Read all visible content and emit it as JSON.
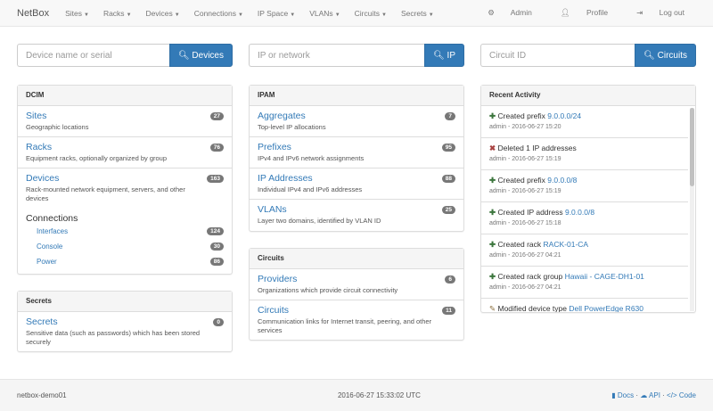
{
  "nav": {
    "brand": "NetBox",
    "menus": [
      "Sites",
      "Racks",
      "Devices",
      "Connections",
      "IP Space",
      "VLANs",
      "Circuits",
      "Secrets"
    ],
    "admin": "Admin",
    "profile": "Profile",
    "logout": "Log out"
  },
  "search": {
    "devices": {
      "placeholder": "Device name or serial",
      "button": "Devices"
    },
    "ip": {
      "placeholder": "IP or network",
      "button": "IP"
    },
    "circuits": {
      "placeholder": "Circuit ID",
      "button": "Circuits"
    }
  },
  "dcim": {
    "title": "DCIM",
    "items": [
      {
        "label": "Sites",
        "desc": "Geographic locations",
        "count": "27"
      },
      {
        "label": "Racks",
        "desc": "Equipment racks, optionally organized by group",
        "count": "76"
      },
      {
        "label": "Devices",
        "desc": "Rack-mounted network equipment, servers, and other devices",
        "count": "163"
      }
    ],
    "connections": {
      "label": "Connections",
      "items": [
        {
          "label": "Interfaces",
          "count": "124"
        },
        {
          "label": "Console",
          "count": "30"
        },
        {
          "label": "Power",
          "count": "86"
        }
      ]
    }
  },
  "secrets": {
    "title": "Secrets",
    "items": [
      {
        "label": "Secrets",
        "desc": "Sensitive data (such as passwords) which has been stored securely",
        "count": "0"
      }
    ]
  },
  "ipam": {
    "title": "IPAM",
    "items": [
      {
        "label": "Aggregates",
        "desc": "Top-level IP allocations",
        "count": "7"
      },
      {
        "label": "Prefixes",
        "desc": "IPv4 and IPv6 network assignments",
        "count": "95"
      },
      {
        "label": "IP Addresses",
        "desc": "Individual IPv4 and IPv6 addresses",
        "count": "88"
      },
      {
        "label": "VLANs",
        "desc": "Layer two domains, identified by VLAN ID",
        "count": "25"
      }
    ]
  },
  "circuits": {
    "title": "Circuits",
    "items": [
      {
        "label": "Providers",
        "desc": "Organizations which provide circuit connectivity",
        "count": "6"
      },
      {
        "label": "Circuits",
        "desc": "Communication links for Internet transit, peering, and other services",
        "count": "11"
      }
    ]
  },
  "activity": {
    "title": "Recent Activity",
    "items": [
      {
        "icon": "plus",
        "text": "Created prefix",
        "link": "9.0.0.0/24",
        "meta": "admin - 2016-06-27 15:20"
      },
      {
        "icon": "x",
        "text": "Deleted 1 IP addresses",
        "link": "",
        "meta": "admin - 2016-06-27 15:19"
      },
      {
        "icon": "plus",
        "text": "Created prefix",
        "link": "9.0.0.0/8",
        "meta": "admin - 2016-06-27 15:19"
      },
      {
        "icon": "plus",
        "text": "Created IP address",
        "link": "9.0.0.0/8",
        "meta": "admin - 2016-06-27 15:18"
      },
      {
        "icon": "plus",
        "text": "Created rack",
        "link": "RACK-01-CA",
        "meta": "admin - 2016-06-27 04:21"
      },
      {
        "icon": "plus",
        "text": "Created rack group",
        "link": "Hawaii - CAGE-DH1-01",
        "meta": "admin - 2016-06-27 04:21"
      },
      {
        "icon": "pencil",
        "text": "Modified device type",
        "link": "Dell PowerEdge R630",
        "meta": ""
      }
    ]
  },
  "footer": {
    "host": "netbox-demo01",
    "time": "2016-06-27 15:33:02 UTC",
    "docs": "Docs",
    "api": "API",
    "code": "Code"
  }
}
